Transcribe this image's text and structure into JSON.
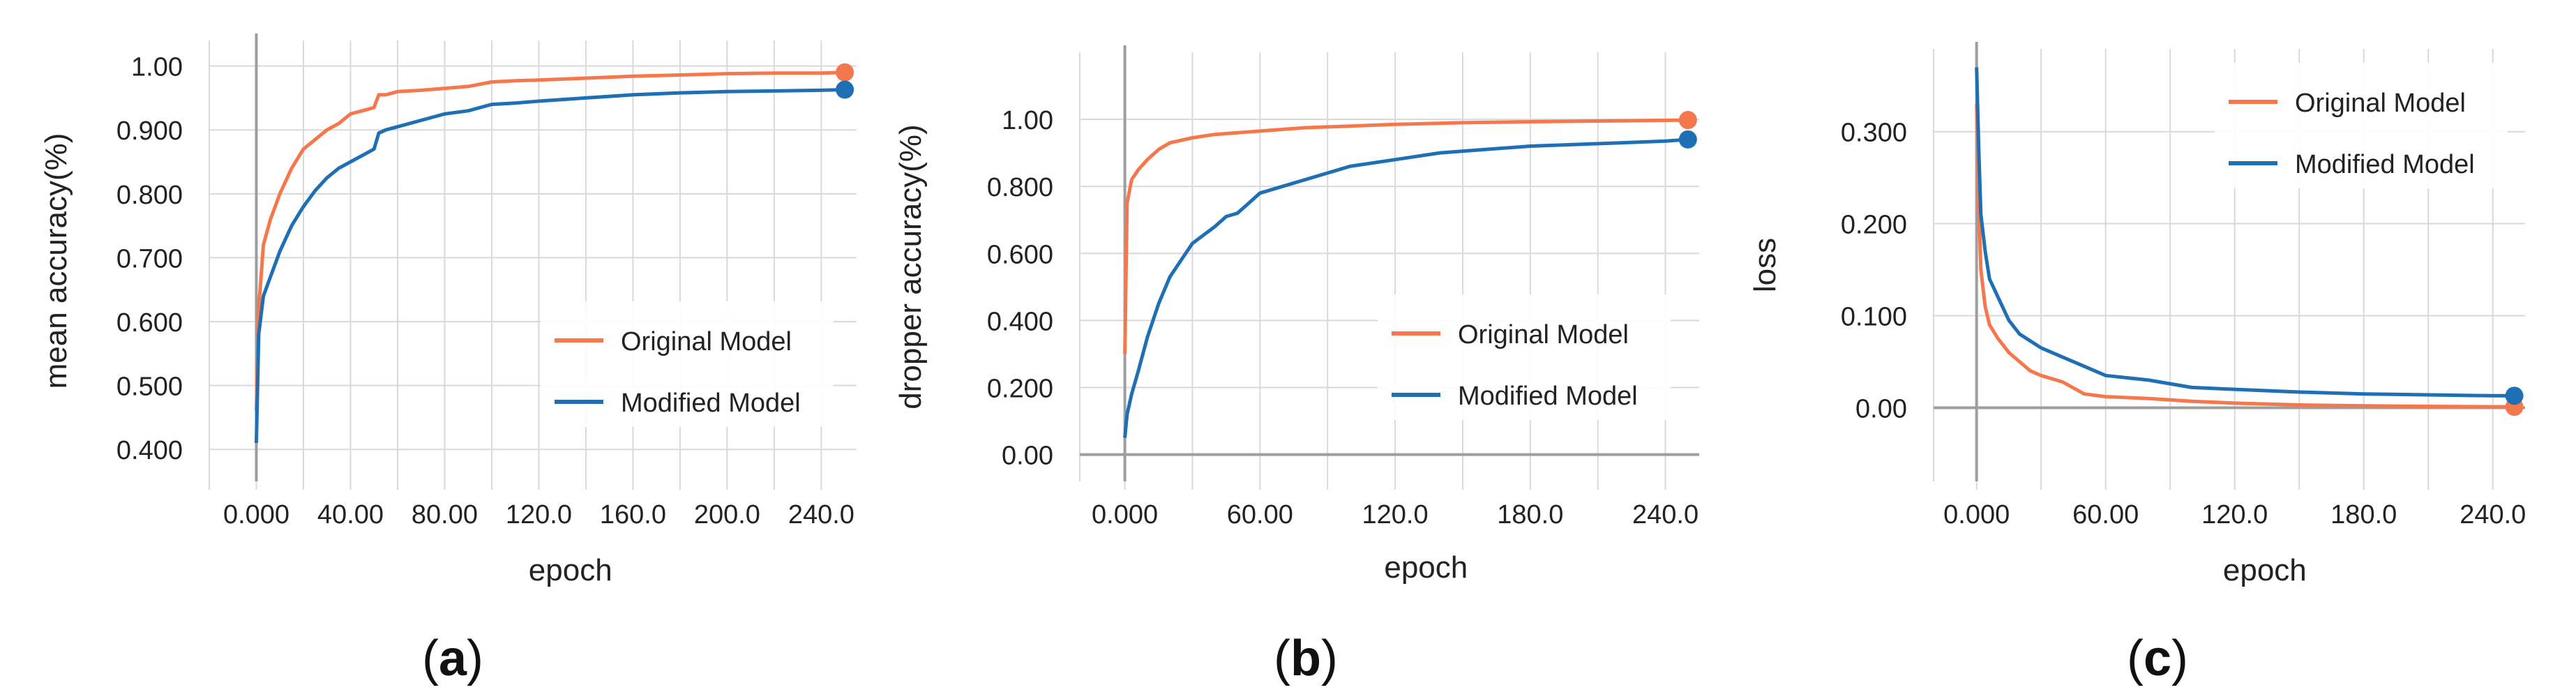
{
  "colors": {
    "original": "#F4784B",
    "modified": "#1F6FB4",
    "grid": "#D9D9D9",
    "axis": "#9E9E9E",
    "text": "#222222"
  },
  "chart_data": [
    {
      "type": "line",
      "panel_label": "a",
      "xlabel": "epoch",
      "ylabel": "mean accuracy(%)",
      "xlim": [
        -20,
        255
      ],
      "ylim": [
        0.35,
        1.04
      ],
      "xticks": [
        0,
        40,
        80,
        120,
        160,
        200,
        240
      ],
      "xtick_labels": [
        "0.000",
        "40.00",
        "80.00",
        "120.0",
        "160.0",
        "200.0",
        "240.0"
      ],
      "yticks": [
        0.4,
        0.5,
        0.6,
        0.7,
        0.8,
        0.9,
        1.0
      ],
      "ytick_labels": [
        "0.400",
        "0.500",
        "0.600",
        "0.700",
        "0.800",
        "0.900",
        "1.00"
      ],
      "grid": true,
      "legend_position": "bottom-right",
      "series": [
        {
          "name": "Original Model",
          "color": "#F4784B",
          "x": [
            0,
            1,
            3,
            6,
            10,
            15,
            20,
            25,
            30,
            35,
            40,
            45,
            50,
            52,
            55,
            60,
            70,
            80,
            90,
            100,
            110,
            120,
            140,
            160,
            180,
            200,
            220,
            240,
            250
          ],
          "y": [
            0.46,
            0.62,
            0.72,
            0.76,
            0.8,
            0.84,
            0.87,
            0.885,
            0.9,
            0.91,
            0.925,
            0.93,
            0.935,
            0.955,
            0.955,
            0.96,
            0.962,
            0.965,
            0.968,
            0.975,
            0.977,
            0.978,
            0.981,
            0.984,
            0.986,
            0.988,
            0.989,
            0.989,
            0.99
          ]
        },
        {
          "name": "Modified Model",
          "color": "#1F6FB4",
          "x": [
            0,
            1,
            3,
            6,
            10,
            15,
            20,
            25,
            30,
            35,
            40,
            45,
            50,
            52,
            55,
            60,
            70,
            80,
            90,
            100,
            110,
            120,
            140,
            160,
            180,
            200,
            220,
            240,
            250
          ],
          "y": [
            0.41,
            0.58,
            0.64,
            0.67,
            0.71,
            0.75,
            0.78,
            0.805,
            0.825,
            0.84,
            0.85,
            0.86,
            0.87,
            0.895,
            0.9,
            0.905,
            0.915,
            0.925,
            0.93,
            0.94,
            0.942,
            0.945,
            0.95,
            0.955,
            0.958,
            0.96,
            0.961,
            0.962,
            0.963
          ]
        }
      ]
    },
    {
      "type": "line",
      "panel_label": "b",
      "xlabel": "epoch",
      "ylabel": "dropper accuracy(%)",
      "xlim": [
        -20,
        255
      ],
      "ylim": [
        -0.08,
        1.2
      ],
      "xticks": [
        0,
        60,
        120,
        180,
        240
      ],
      "xtick_labels": [
        "0.000",
        "60.00",
        "120.0",
        "180.0",
        "240.0"
      ],
      "yticks": [
        0.0,
        0.2,
        0.4,
        0.6,
        0.8,
        1.0
      ],
      "ytick_labels": [
        "0.00",
        "0.200",
        "0.400",
        "0.600",
        "0.800",
        "1.00"
      ],
      "grid": true,
      "legend_position": "bottom-right",
      "series": [
        {
          "name": "Original Model",
          "color": "#F4784B",
          "x": [
            0,
            1,
            3,
            6,
            10,
            15,
            20,
            30,
            40,
            50,
            60,
            80,
            100,
            120,
            150,
            180,
            210,
            240,
            250
          ],
          "y": [
            0.3,
            0.75,
            0.82,
            0.85,
            0.88,
            0.91,
            0.93,
            0.945,
            0.955,
            0.96,
            0.965,
            0.975,
            0.98,
            0.985,
            0.99,
            0.993,
            0.995,
            0.997,
            0.998
          ]
        },
        {
          "name": "Modified Model",
          "color": "#1F6FB4",
          "x": [
            0,
            1,
            3,
            6,
            10,
            15,
            20,
            25,
            30,
            40,
            45,
            50,
            55,
            60,
            70,
            80,
            90,
            100,
            120,
            140,
            160,
            180,
            200,
            220,
            240,
            250
          ],
          "y": [
            0.05,
            0.12,
            0.18,
            0.25,
            0.35,
            0.45,
            0.53,
            0.58,
            0.63,
            0.68,
            0.71,
            0.72,
            0.75,
            0.78,
            0.8,
            0.82,
            0.84,
            0.86,
            0.88,
            0.9,
            0.91,
            0.92,
            0.925,
            0.93,
            0.935,
            0.94
          ]
        }
      ]
    },
    {
      "type": "line",
      "panel_label": "c",
      "xlabel": "epoch",
      "ylabel": "loss",
      "xlim": [
        -20,
        255
      ],
      "ylim": [
        -0.08,
        0.39
      ],
      "xticks": [
        0,
        60,
        120,
        180,
        240
      ],
      "xtick_labels": [
        "0.000",
        "60.00",
        "120.0",
        "180.0",
        "240.0"
      ],
      "yticks": [
        0.0,
        0.1,
        0.2,
        0.3
      ],
      "ytick_labels": [
        "0.00",
        "0.100",
        "0.200",
        "0.300"
      ],
      "grid": true,
      "legend_position": "top-right",
      "series": [
        {
          "name": "Original Model",
          "color": "#F4784B",
          "x": [
            0,
            1,
            2,
            4,
            6,
            10,
            15,
            20,
            25,
            30,
            40,
            50,
            60,
            80,
            100,
            120,
            150,
            180,
            210,
            240,
            250
          ],
          "y": [
            0.33,
            0.22,
            0.15,
            0.11,
            0.09,
            0.075,
            0.06,
            0.05,
            0.04,
            0.035,
            0.028,
            0.015,
            0.012,
            0.01,
            0.007,
            0.005,
            0.003,
            0.002,
            0.0015,
            0.001,
            0.001
          ]
        },
        {
          "name": "Modified Model",
          "color": "#1F6FB4",
          "x": [
            0,
            1,
            2,
            4,
            6,
            10,
            15,
            20,
            30,
            40,
            50,
            60,
            80,
            100,
            120,
            150,
            180,
            210,
            240,
            250
          ],
          "y": [
            0.37,
            0.28,
            0.21,
            0.17,
            0.14,
            0.12,
            0.095,
            0.08,
            0.065,
            0.055,
            0.045,
            0.035,
            0.03,
            0.022,
            0.02,
            0.017,
            0.015,
            0.014,
            0.013,
            0.013
          ]
        }
      ]
    }
  ]
}
